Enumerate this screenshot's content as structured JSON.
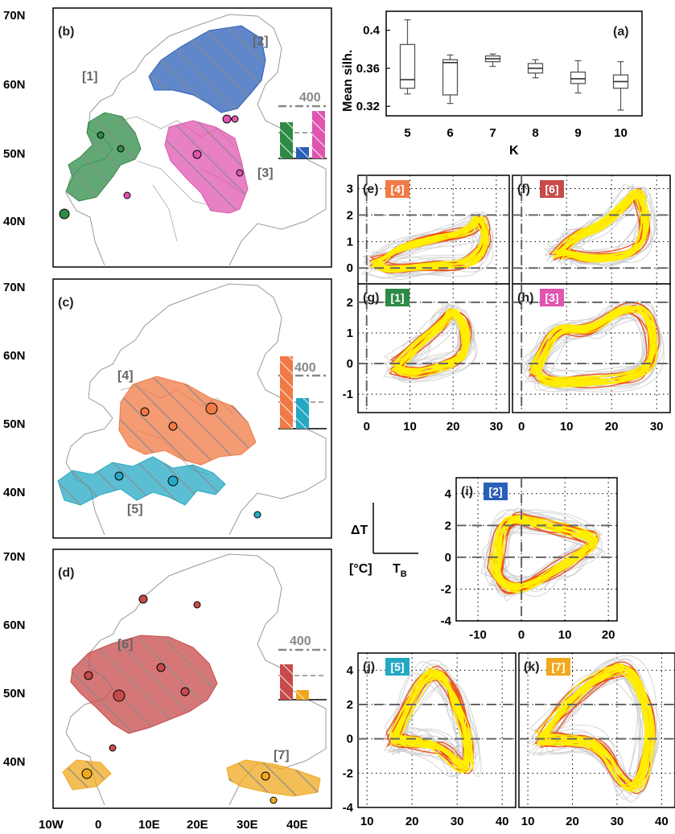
{
  "colors": {
    "region_1": "#2e8b45",
    "region_2": "#2a5fb8",
    "region_3": "#e055b0",
    "region_4": "#f07a45",
    "region_5": "#25a8c4",
    "region_6": "#c84a4a",
    "region_7": "#f0a81e",
    "ensemble": "#cccccc",
    "trajectory_high": "#ffee00",
    "trajectory_low": "#ee4a10"
  },
  "map_axes": {
    "lat_ticks": [
      "70N",
      "60N",
      "50N",
      "40N"
    ],
    "lon_ticks": [
      "10W",
      "0",
      "10E",
      "20E",
      "30E",
      "40E"
    ]
  },
  "maps": [
    {
      "panel": "(b)",
      "regions": [
        {
          "label": "[1]",
          "color_key": "region_1"
        },
        {
          "label": "[2]",
          "color_key": "region_2"
        },
        {
          "label": "[3]",
          "color_key": "region_3"
        }
      ],
      "inset_label": "400"
    },
    {
      "panel": "(c)",
      "regions": [
        {
          "label": "[4]",
          "color_key": "region_4"
        },
        {
          "label": "[5]",
          "color_key": "region_5"
        }
      ],
      "inset_label": "400"
    },
    {
      "panel": "(d)",
      "regions": [
        {
          "label": "[6]",
          "color_key": "region_6"
        },
        {
          "label": "[7]",
          "color_key": "region_7"
        }
      ],
      "inset_label": "400"
    }
  ],
  "chart_data": [
    {
      "type": "box",
      "panel": "(a)",
      "xlabel": "K",
      "ylabel": "Mean silh.",
      "categories": [
        "5",
        "6",
        "7",
        "8",
        "9",
        "10"
      ],
      "yticks": [
        "0.32",
        "0.36",
        "0.4"
      ],
      "ylim": [
        0.31,
        0.42
      ],
      "boxes": [
        {
          "min": 0.333,
          "q1": 0.339,
          "median": 0.348,
          "q3": 0.385,
          "max": 0.411
        },
        {
          "min": 0.323,
          "q1": 0.332,
          "median": 0.366,
          "q3": 0.369,
          "max": 0.374
        },
        {
          "min": 0.362,
          "q1": 0.367,
          "median": 0.37,
          "q3": 0.373,
          "max": 0.375
        },
        {
          "min": 0.35,
          "q1": 0.355,
          "median": 0.36,
          "q3": 0.365,
          "max": 0.369
        },
        {
          "min": 0.334,
          "q1": 0.344,
          "median": 0.349,
          "q3": 0.356,
          "max": 0.368
        },
        {
          "min": 0.316,
          "q1": 0.339,
          "median": 0.346,
          "q3": 0.353,
          "max": 0.367
        }
      ]
    },
    {
      "type": "line",
      "panels": [
        {
          "panel": "(e)",
          "tag": "[4]",
          "color_key": "region_4"
        },
        {
          "panel": "(f)",
          "tag": "[6]",
          "color_key": "region_6"
        },
        {
          "panel": "(g)",
          "tag": "[1]",
          "color_key": "region_1"
        },
        {
          "panel": "(h)",
          "tag": "[3]",
          "color_key": "region_3"
        },
        {
          "panel": "(i)",
          "tag": "[2]",
          "color_key": "region_2"
        },
        {
          "panel": "(j)",
          "tag": "[5]",
          "color_key": "region_5"
        },
        {
          "panel": "(k)",
          "tag": "[7]",
          "color_key": "region_7"
        }
      ],
      "ticks": {
        "efgh_x": [
          "0",
          "10",
          "20",
          "30"
        ],
        "ef_y": [
          "0",
          "1",
          "2",
          "3"
        ],
        "gh_y": [
          "-1",
          "0",
          "1",
          "2"
        ],
        "i_x": [
          "-10",
          "0",
          "10",
          "20"
        ],
        "i_y": [
          "-4",
          "-2",
          "0",
          "2",
          "4"
        ],
        "jk_x": [
          "10",
          "20",
          "30",
          "40"
        ],
        "jk_y": [
          "-4",
          "-2",
          "0",
          "2",
          "4"
        ]
      },
      "legend_key": {
        "ylabel": "ΔT",
        "unit": "[°C]",
        "xlabel": "T",
        "xlabel_sub": "B"
      }
    }
  ]
}
